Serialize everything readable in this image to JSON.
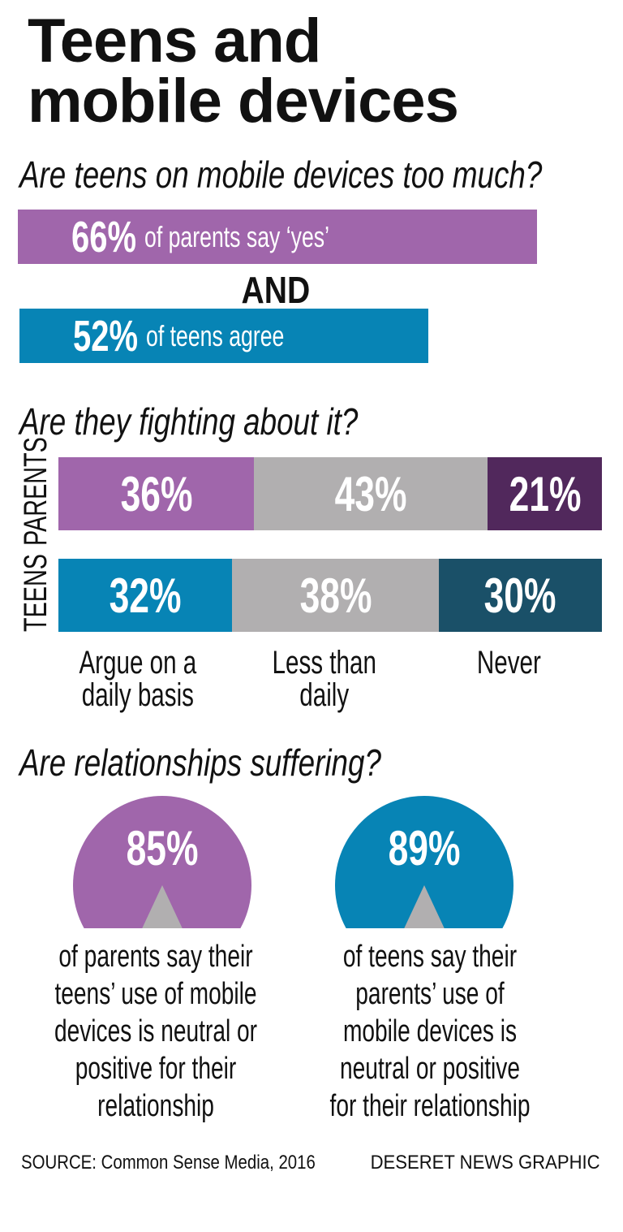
{
  "title_line1": "Teens and",
  "title_line2": "mobile devices",
  "chart_data": [
    {
      "type": "bar",
      "title": "Are teens on mobile devices too much?",
      "bars": [
        {
          "value": 66,
          "label": "66%",
          "text": "of parents say ‘yes’",
          "color": "#a066ab"
        },
        {
          "value": 52,
          "label": "52%",
          "text": "of teens agree",
          "color": "#0784b5"
        }
      ],
      "connector": "AND"
    },
    {
      "type": "bar",
      "stacked": true,
      "title": "Are they fighting about it?",
      "categories": [
        "Argue on a daily basis",
        "Less than daily",
        "Never"
      ],
      "series": [
        {
          "name": "PARENTS",
          "values": [
            36,
            43,
            21
          ],
          "labels": [
            "36%",
            "43%",
            "21%"
          ],
          "colors": [
            "#a066ab",
            "#b1afb0",
            "#51285c"
          ]
        },
        {
          "name": "TEENS",
          "values": [
            32,
            38,
            30
          ],
          "labels": [
            "32%",
            "38%",
            "30%"
          ],
          "colors": [
            "#0784b5",
            "#b1afb0",
            "#1a5068"
          ]
        }
      ],
      "category_lines": [
        [
          "Argue on a",
          "daily basis"
        ],
        [
          "Less than",
          "daily"
        ],
        [
          "Never"
        ]
      ]
    },
    {
      "type": "pie",
      "title": "Are relationships suffering?",
      "items": [
        {
          "value": 85,
          "label": "85%",
          "color": "#a066ab",
          "rest_color": "#b1afb0",
          "text": "of parents say their teens’ use of mobile devices is neutral or positive for their relationship"
        },
        {
          "value": 89,
          "label": "89%",
          "color": "#0784b5",
          "rest_color": "#b1afb0",
          "text": "of teens say their parents’ use of mobile devices is neutral or positive for their relationship"
        }
      ]
    }
  ],
  "source": "SOURCE: Common Sense Media, 2016",
  "credit": "DESERET NEWS GRAPHIC"
}
